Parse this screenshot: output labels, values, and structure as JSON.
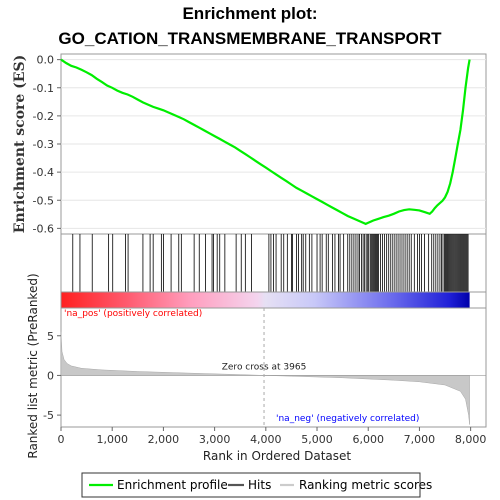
{
  "chart_data": {
    "type": "line",
    "title_line1": "Enrichment plot:",
    "title_line2": "GO_CATION_TRANSMEMBRANE_TRANSPORT",
    "es_panel": {
      "ylabel": "Enrichment score (ES)",
      "ylim": [
        -0.62,
        0.02
      ],
      "yticks": [
        "0.0",
        "-0.1",
        "-0.2",
        "-0.3",
        "-0.4",
        "-0.5",
        "-0.6"
      ],
      "ytick_values": [
        0.0,
        -0.1,
        -0.2,
        -0.3,
        -0.4,
        -0.5,
        -0.6
      ],
      "line_color": "#00ee00",
      "curve": [
        [
          0,
          0.0
        ],
        [
          100,
          -0.012
        ],
        [
          200,
          -0.022
        ],
        [
          300,
          -0.028
        ],
        [
          400,
          -0.036
        ],
        [
          500,
          -0.045
        ],
        [
          600,
          -0.055
        ],
        [
          700,
          -0.068
        ],
        [
          800,
          -0.08
        ],
        [
          900,
          -0.092
        ],
        [
          1000,
          -0.1
        ],
        [
          1100,
          -0.11
        ],
        [
          1200,
          -0.118
        ],
        [
          1300,
          -0.124
        ],
        [
          1400,
          -0.132
        ],
        [
          1500,
          -0.142
        ],
        [
          1600,
          -0.152
        ],
        [
          1700,
          -0.16
        ],
        [
          1800,
          -0.168
        ],
        [
          1900,
          -0.174
        ],
        [
          2000,
          -0.18
        ],
        [
          2100,
          -0.188
        ],
        [
          2200,
          -0.196
        ],
        [
          2300,
          -0.204
        ],
        [
          2400,
          -0.212
        ],
        [
          2500,
          -0.222
        ],
        [
          2600,
          -0.232
        ],
        [
          2700,
          -0.242
        ],
        [
          2800,
          -0.252
        ],
        [
          2900,
          -0.262
        ],
        [
          3000,
          -0.272
        ],
        [
          3100,
          -0.282
        ],
        [
          3200,
          -0.292
        ],
        [
          3300,
          -0.302
        ],
        [
          3400,
          -0.312
        ],
        [
          3500,
          -0.324
        ],
        [
          3600,
          -0.336
        ],
        [
          3700,
          -0.348
        ],
        [
          3800,
          -0.36
        ],
        [
          3900,
          -0.372
        ],
        [
          4000,
          -0.384
        ],
        [
          4100,
          -0.396
        ],
        [
          4200,
          -0.408
        ],
        [
          4300,
          -0.42
        ],
        [
          4400,
          -0.432
        ],
        [
          4500,
          -0.444
        ],
        [
          4600,
          -0.456
        ],
        [
          4700,
          -0.466
        ],
        [
          4800,
          -0.476
        ],
        [
          4900,
          -0.486
        ],
        [
          5000,
          -0.496
        ],
        [
          5100,
          -0.506
        ],
        [
          5200,
          -0.516
        ],
        [
          5300,
          -0.526
        ],
        [
          5400,
          -0.536
        ],
        [
          5500,
          -0.546
        ],
        [
          5600,
          -0.556
        ],
        [
          5700,
          -0.564
        ],
        [
          5800,
          -0.572
        ],
        [
          5900,
          -0.58
        ],
        [
          5950,
          -0.584
        ],
        [
          6000,
          -0.58
        ],
        [
          6050,
          -0.576
        ],
        [
          6100,
          -0.572
        ],
        [
          6200,
          -0.566
        ],
        [
          6300,
          -0.56
        ],
        [
          6400,
          -0.555
        ],
        [
          6500,
          -0.548
        ],
        [
          6600,
          -0.54
        ],
        [
          6700,
          -0.535
        ],
        [
          6800,
          -0.532
        ],
        [
          6900,
          -0.534
        ],
        [
          7000,
          -0.536
        ],
        [
          7100,
          -0.542
        ],
        [
          7200,
          -0.548
        ],
        [
          7250,
          -0.54
        ],
        [
          7300,
          -0.528
        ],
        [
          7350,
          -0.518
        ],
        [
          7400,
          -0.51
        ],
        [
          7450,
          -0.502
        ],
        [
          7500,
          -0.49
        ],
        [
          7550,
          -0.47
        ],
        [
          7600,
          -0.44
        ],
        [
          7650,
          -0.4
        ],
        [
          7700,
          -0.35
        ],
        [
          7750,
          -0.3
        ],
        [
          7800,
          -0.25
        ],
        [
          7850,
          -0.18
        ],
        [
          7900,
          -0.1
        ],
        [
          7950,
          -0.03
        ],
        [
          7980,
          0.0
        ]
      ]
    },
    "metric_panel": {
      "ylabel": "Ranked list metric (PreRanked)",
      "ylim": [
        -6.5,
        8.5
      ],
      "yticks": [
        "5",
        "0",
        "-5"
      ],
      "ytick_values": [
        5,
        0,
        -5
      ],
      "zero_cross_label": "Zero cross at 3965",
      "zero_cross": 3965,
      "pos_label": "'na_pos' (positively correlated)",
      "neg_label": "'na_neg' (negatively correlated)",
      "pos_label_color": "#ff0000",
      "neg_label_color": "#0000ff",
      "metric_profile": [
        [
          0,
          5.5
        ],
        [
          20,
          3.0
        ],
        [
          60,
          2.0
        ],
        [
          120,
          1.5
        ],
        [
          200,
          1.2
        ],
        [
          400,
          0.9
        ],
        [
          800,
          0.7
        ],
        [
          1500,
          0.5
        ],
        [
          2500,
          0.3
        ],
        [
          3500,
          0.1
        ],
        [
          3965,
          0.0
        ],
        [
          4500,
          -0.1
        ],
        [
          5500,
          -0.3
        ],
        [
          6500,
          -0.6
        ],
        [
          7000,
          -0.8
        ],
        [
          7500,
          -1.2
        ],
        [
          7800,
          -2.0
        ],
        [
          7900,
          -3.0
        ],
        [
          7960,
          -5.0
        ],
        [
          7980,
          -6.2
        ]
      ]
    },
    "xaxis": {
      "xlabel": "Rank in Ordered Dataset",
      "xlim": [
        0,
        8300
      ],
      "xticks": [
        "0",
        "1,000",
        "2,000",
        "3,000",
        "4,000",
        "5,000",
        "6,000",
        "7,000",
        "8,000"
      ],
      "xtick_values": [
        0,
        1000,
        2000,
        3000,
        4000,
        5000,
        6000,
        7000,
        8000
      ],
      "n_genes": 7980
    },
    "hits_ranks": [
      230,
      370,
      610,
      930,
      1010,
      1260,
      1310,
      1600,
      1740,
      1800,
      1960,
      2000,
      2150,
      2300,
      2350,
      2600,
      2700,
      2820,
      2950,
      2980,
      3050,
      3100,
      3200,
      3420,
      3520,
      3600,
      3720,
      4060,
      4100,
      4150,
      4200,
      4300,
      4350,
      4420,
      4500,
      4520,
      4600,
      4640,
      4700,
      4730,
      4780,
      4850,
      4900,
      5000,
      5060,
      5100,
      5180,
      5220,
      5300,
      5350,
      5420,
      5450,
      5520,
      5600,
      5640,
      5680,
      5720,
      5760,
      5800,
      5830,
      5870,
      5900,
      5930,
      5960,
      5990,
      6010,
      6040,
      6060,
      6080,
      6100,
      6120,
      6140,
      6160,
      6180,
      6200,
      6240,
      6280,
      6320,
      6360,
      6400,
      6440,
      6480,
      6520,
      6560,
      6600,
      6640,
      6680,
      6720,
      6760,
      6800,
      6840,
      6900,
      6960,
      7000,
      7040,
      7100,
      7180,
      7240,
      7280,
      7320,
      7360,
      7400,
      7430,
      7460,
      7490,
      7510,
      7530,
      7550,
      7570,
      7590,
      7610,
      7630,
      7650,
      7670,
      7690,
      7710,
      7730,
      7750,
      7770,
      7790,
      7810,
      7830,
      7850,
      7870,
      7890,
      7910,
      7930,
      7950
    ],
    "legend": [
      {
        "label": "Enrichment profile",
        "color": "#00ee00"
      },
      {
        "label": "Hits",
        "color": "#555555"
      },
      {
        "label": "Ranking metric scores",
        "color": "#cccccc"
      }
    ]
  }
}
